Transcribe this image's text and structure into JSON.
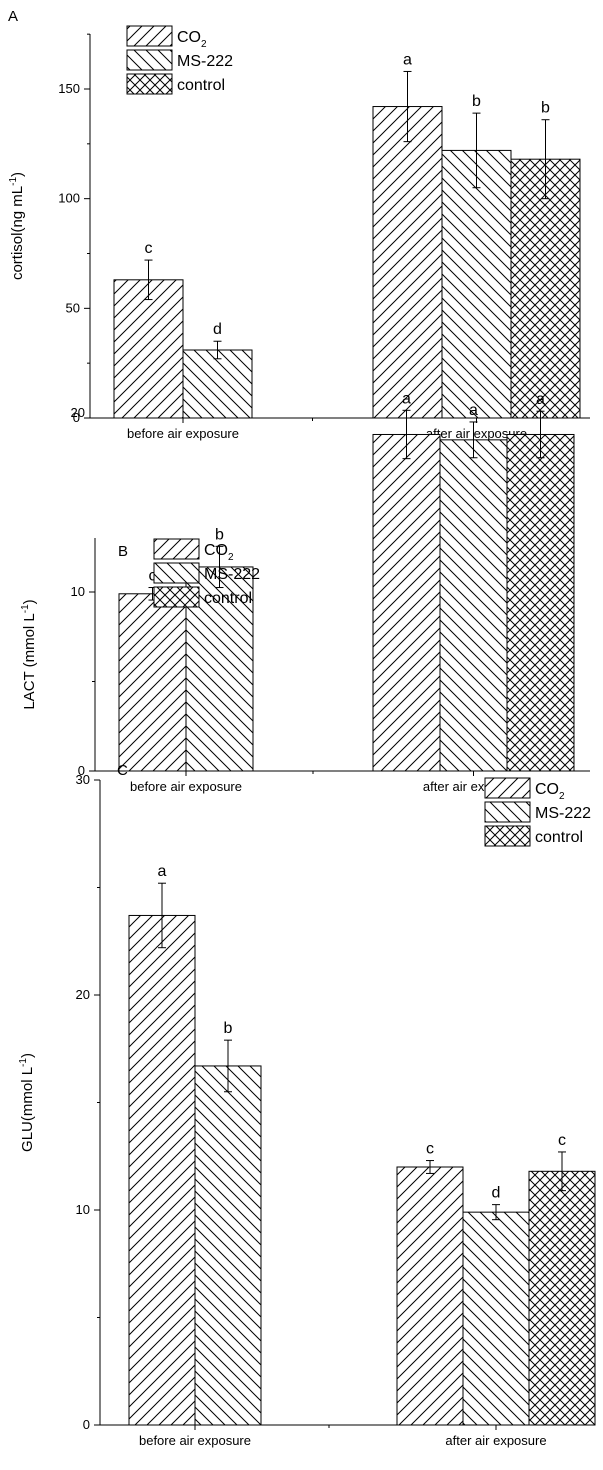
{
  "chart_data": [
    {
      "type": "bar",
      "panel": "A",
      "ylabel": "cortisol(ng mL",
      "ylabel_sup": "-1",
      "ylabel_close": ")",
      "ylim": [
        0,
        170
      ],
      "yticks": [
        "0",
        "50",
        "100",
        "150"
      ],
      "yticks_values": [
        0,
        50,
        100,
        150
      ],
      "categories": [
        "before air exposure",
        "after air exposure"
      ],
      "legend": {
        "placement": "top-left",
        "entries": [
          "CO",
          "MS-222",
          "control"
        ],
        "co2_sub": "2"
      },
      "series": [
        {
          "name": "CO2",
          "pattern": "diag-up",
          "values": [
            63,
            142
          ],
          "errors": [
            9,
            16
          ],
          "letters": [
            "c",
            "a"
          ]
        },
        {
          "name": "MS-222",
          "pattern": "diag-down",
          "values": [
            31,
            122
          ],
          "errors": [
            4,
            17
          ],
          "letters": [
            "d",
            "b"
          ]
        },
        {
          "name": "control",
          "pattern": "cross",
          "values": [
            null,
            118
          ],
          "errors": [
            null,
            18
          ],
          "letters": [
            null,
            "b"
          ]
        }
      ]
    },
    {
      "type": "bar",
      "panel": "B",
      "ylabel": "LACT (mmol L",
      "ylabel_sup": "-1",
      "ylabel_close": ")",
      "ylim": [
        0,
        22.3
      ],
      "yticks": [
        "0",
        "10",
        "20"
      ],
      "yticks_values": [
        0,
        10,
        20
      ],
      "categories": [
        "before air exposure",
        "after air exposure"
      ],
      "legend": {
        "placement": "top-left",
        "entries": [
          "CO",
          "MS-222",
          "control"
        ],
        "co2_sub": "2"
      },
      "series": [
        {
          "name": "CO2",
          "pattern": "diag-up",
          "values": [
            9.9,
            18.8
          ],
          "errors": [
            0.35,
            1.35
          ],
          "letters": [
            "c",
            "a"
          ]
        },
        {
          "name": "MS-222",
          "pattern": "diag-down",
          "values": [
            11.4,
            18.5
          ],
          "errors": [
            1.15,
            1.0
          ],
          "letters": [
            "b",
            "a"
          ]
        },
        {
          "name": "control",
          "pattern": "cross",
          "values": [
            null,
            18.8
          ],
          "errors": [
            null,
            1.3
          ],
          "letters": [
            null,
            "a"
          ]
        }
      ]
    },
    {
      "type": "bar",
      "panel": "C",
      "ylabel": "GLU(mmol L",
      "ylabel_sup": "-1",
      "ylabel_close": ")",
      "ylim": [
        0,
        30
      ],
      "yticks": [
        "0",
        "10",
        "20",
        "30"
      ],
      "yticks_values": [
        0,
        10,
        20,
        30
      ],
      "categories": [
        "before air exposure",
        "after air exposure"
      ],
      "legend": {
        "placement": "top-right",
        "entries": [
          "CO",
          "MS-222",
          "control"
        ],
        "co2_sub": "2"
      },
      "series": [
        {
          "name": "CO2",
          "pattern": "diag-up",
          "values": [
            23.7,
            12.0
          ],
          "errors": [
            1.5,
            0.3
          ],
          "letters": [
            "a",
            "c"
          ]
        },
        {
          "name": "MS-222",
          "pattern": "diag-down",
          "values": [
            16.7,
            9.9
          ],
          "errors": [
            1.2,
            0.35
          ],
          "letters": [
            "b",
            "d"
          ]
        },
        {
          "name": "control",
          "pattern": "cross",
          "values": [
            null,
            11.8
          ],
          "errors": [
            null,
            0.9
          ],
          "letters": [
            null,
            "c"
          ]
        }
      ]
    }
  ]
}
